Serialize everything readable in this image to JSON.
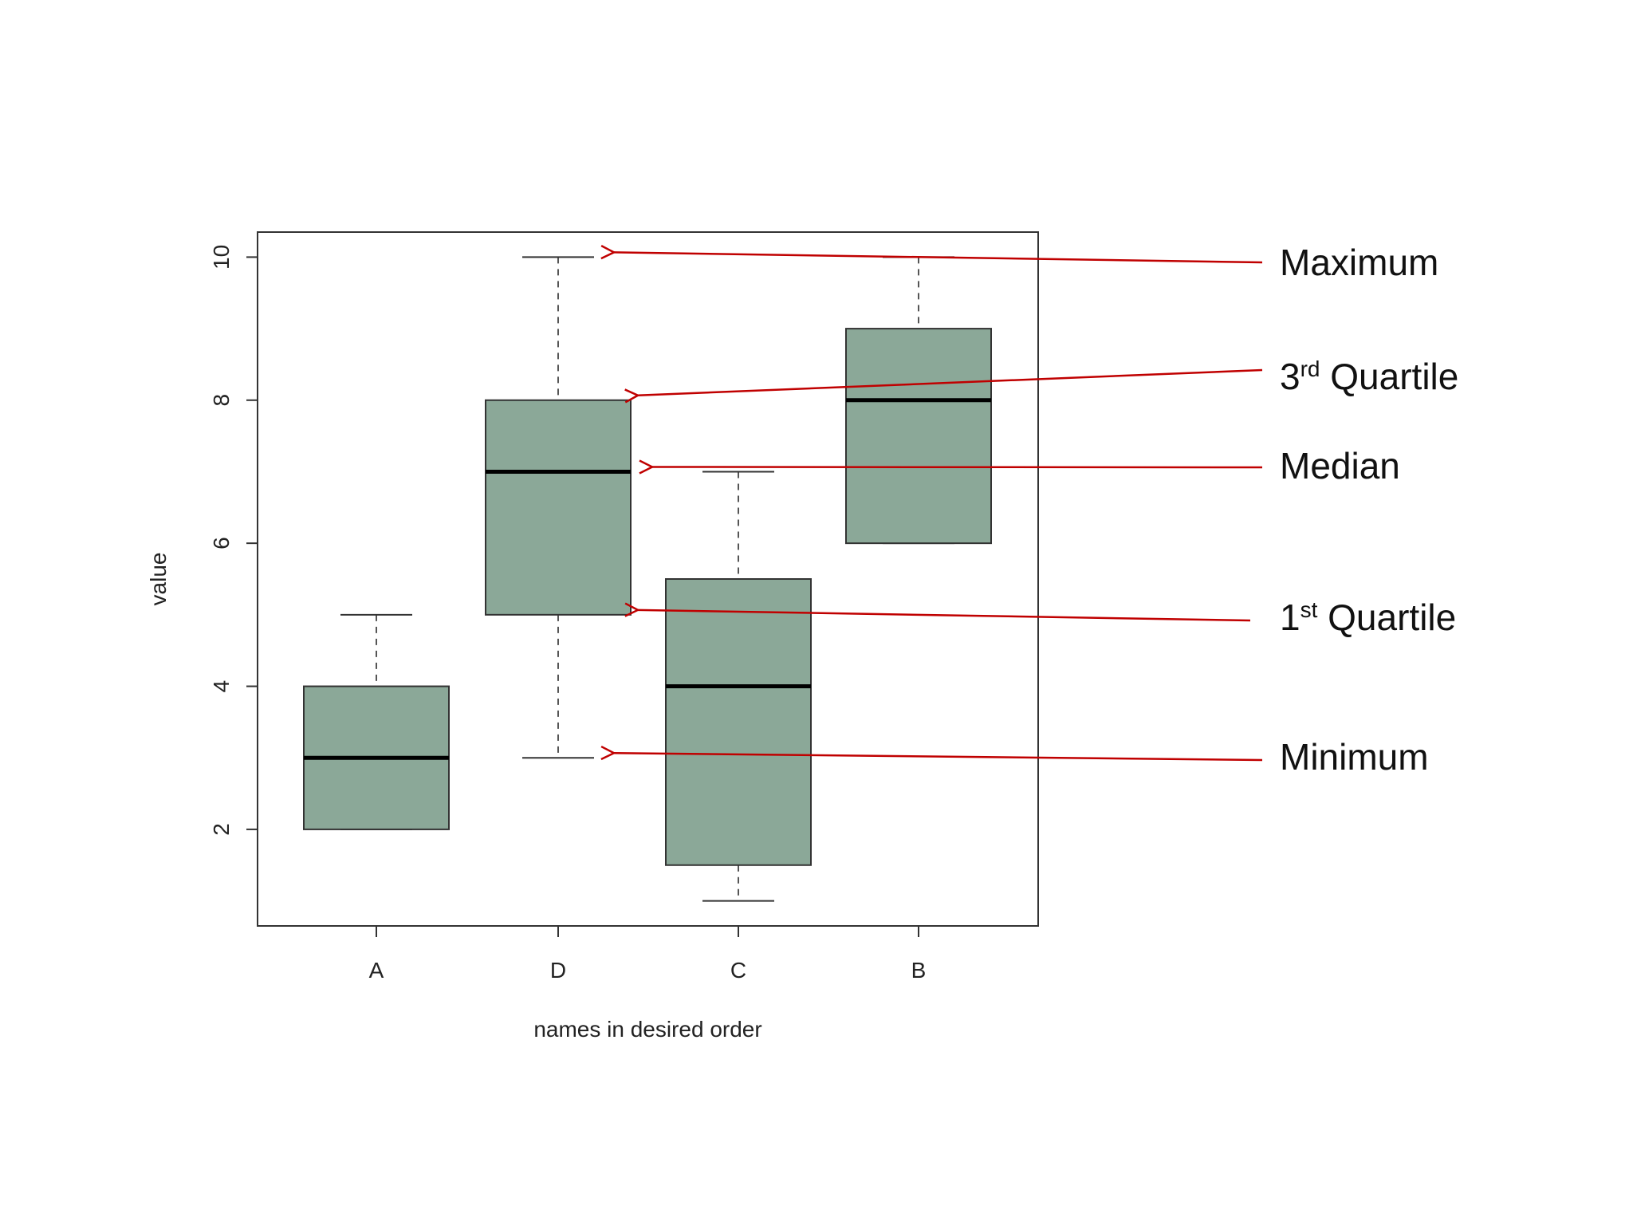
{
  "chart_data": {
    "type": "boxplot",
    "xlabel": "names in desired order",
    "ylabel": "value",
    "ylim": [
      0.65,
      10.35
    ],
    "yticks": [
      2,
      4,
      6,
      8,
      10
    ],
    "grid": false,
    "box_color": "#8BA898",
    "categories": [
      "A",
      "D",
      "C",
      "B"
    ],
    "boxes": [
      {
        "name": "A",
        "min": 2,
        "q1": 2,
        "median": 3,
        "q3": 4,
        "max": 5
      },
      {
        "name": "D",
        "min": 3,
        "q1": 5,
        "median": 7,
        "q3": 8,
        "max": 10
      },
      {
        "name": "C",
        "min": 1,
        "q1": 1.5,
        "median": 4,
        "q3": 5.5,
        "max": 7
      },
      {
        "name": "B",
        "min": 6,
        "q1": 6,
        "median": 8,
        "q3": 9,
        "max": 10
      }
    ],
    "annotations": [
      {
        "id": "maximum",
        "label": "Maximum",
        "sup": "",
        "tail": "",
        "points_to": {
          "category": "D",
          "value": 10
        }
      },
      {
        "id": "q3",
        "label": "3",
        "sup": "rd",
        "tail": " Quartile",
        "points_to": {
          "category": "D",
          "value": 8
        }
      },
      {
        "id": "median",
        "label": "Median",
        "sup": "",
        "tail": "",
        "points_to": {
          "category": "D",
          "value": 7
        }
      },
      {
        "id": "q1",
        "label": "1",
        "sup": "st",
        "tail": " Quartile",
        "points_to": {
          "category": "D",
          "value": 5
        }
      },
      {
        "id": "minimum",
        "label": "Minimum",
        "sup": "",
        "tail": "",
        "points_to": {
          "category": "D",
          "value": 3
        }
      }
    ],
    "annotation_color": "#C00000"
  }
}
